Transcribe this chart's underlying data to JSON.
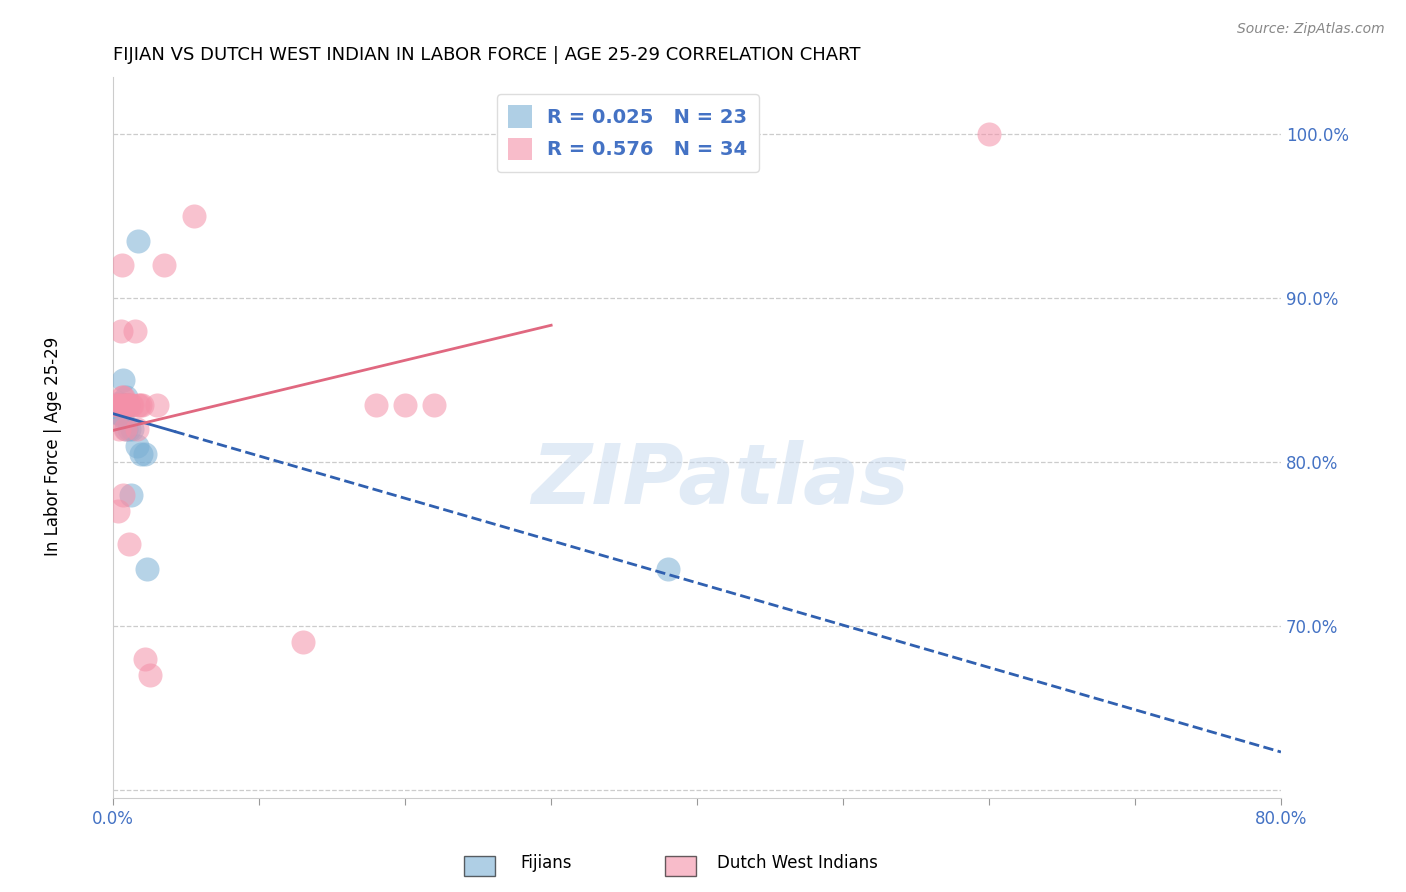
{
  "title": "FIJIAN VS DUTCH WEST INDIAN IN LABOR FORCE | AGE 25-29 CORRELATION CHART",
  "source": "Source: ZipAtlas.com",
  "ylabel": "In Labor Force | Age 25-29",
  "xlim": [
    0.0,
    0.8
  ],
  "ylim": [
    0.595,
    1.035
  ],
  "fijians_x": [
    0.003,
    0.003,
    0.004,
    0.004,
    0.005,
    0.005,
    0.006,
    0.006,
    0.007,
    0.008,
    0.008,
    0.009,
    0.009,
    0.01,
    0.011,
    0.012,
    0.013,
    0.016,
    0.017,
    0.019,
    0.022,
    0.023,
    0.38
  ],
  "fijians_y": [
    0.835,
    0.83,
    0.836,
    0.83,
    0.835,
    0.835,
    0.835,
    0.828,
    0.85,
    0.835,
    0.835,
    0.84,
    0.82,
    0.835,
    0.82,
    0.78,
    0.82,
    0.81,
    0.935,
    0.805,
    0.805,
    0.735,
    0.735
  ],
  "dwi_x": [
    0.002,
    0.003,
    0.003,
    0.004,
    0.004,
    0.005,
    0.005,
    0.006,
    0.006,
    0.007,
    0.007,
    0.008,
    0.008,
    0.009,
    0.009,
    0.01,
    0.011,
    0.012,
    0.013,
    0.015,
    0.016,
    0.017,
    0.018,
    0.02,
    0.022,
    0.025,
    0.03,
    0.035,
    0.055,
    0.13,
    0.18,
    0.2,
    0.22,
    0.6
  ],
  "dwi_y": [
    0.835,
    0.835,
    0.77,
    0.835,
    0.82,
    0.835,
    0.88,
    0.92,
    0.84,
    0.84,
    0.78,
    0.835,
    0.82,
    0.835,
    0.835,
    0.835,
    0.75,
    0.835,
    0.835,
    0.88,
    0.82,
    0.835,
    0.835,
    0.835,
    0.68,
    0.67,
    0.835,
    0.92,
    0.95,
    0.69,
    0.835,
    0.835,
    0.835,
    1.0
  ],
  "fijian_color": "#7bafd4",
  "dwi_color": "#f490a8",
  "fijian_line_color": "#3060b0",
  "dwi_line_color": "#e06880",
  "fijian_R": 0.025,
  "dwi_R": 0.576,
  "fijian_N": 23,
  "dwi_N": 34,
  "watermark_text": "ZIPatlas",
  "watermark_color": "#c5d8ee",
  "grid_color": "#cccccc",
  "tick_color": "#4472c4",
  "ytick_labels": [
    "",
    "70.0%",
    "80.0%",
    "90.0%",
    "100.0%"
  ],
  "ytick_vals": [
    0.6,
    0.7,
    0.8,
    0.9,
    1.0
  ],
  "xtick_labels": [
    "0.0%",
    "",
    "",
    "",
    "",
    "",
    "",
    "",
    "80.0%"
  ],
  "xtick_vals": [
    0.0,
    0.1,
    0.2,
    0.3,
    0.4,
    0.5,
    0.6,
    0.7,
    0.8
  ],
  "legend_label1": "R = 0.025   N = 23",
  "legend_label2": "R = 0.576   N = 34",
  "bottom_label1": "Fijians",
  "bottom_label2": "Dutch West Indians"
}
